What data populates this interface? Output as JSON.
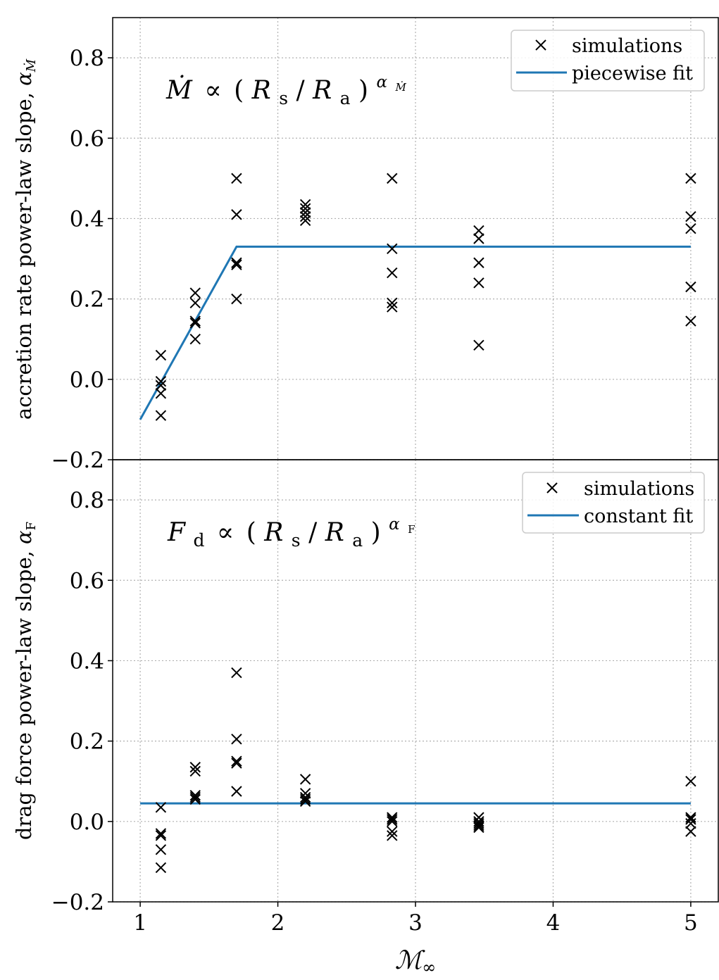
{
  "chart_data": [
    {
      "type": "scatter",
      "ylabel": "accretion rate power-law slope, α_Ṁ",
      "ylabel_main": "accretion rate power-law slope, ",
      "ylabel_sym": "α",
      "ylabel_sub": "Ṁ",
      "ylim": [
        -0.2,
        0.9
      ],
      "xlim": [
        0.8,
        5.2
      ],
      "yticks": [
        "−0.2",
        "0.0",
        "0.2",
        "0.4",
        "0.6",
        "0.8"
      ],
      "ytick_values": [
        -0.2,
        0.0,
        0.2,
        0.4,
        0.6,
        0.8
      ],
      "grid": true,
      "legend_position": "top-right",
      "annotation": "Ṁ ∝ (Rs/Ra)^αṀ",
      "annotation_parts": {
        "lhs": "Ṁ",
        "prop": "∝",
        "open": "(",
        "r1": "R",
        "s1": "s",
        "slash": "/",
        "r2": "R",
        "s2": "a",
        "close": ")",
        "exp": "α",
        "exp_sub": "Ṁ"
      },
      "series": [
        {
          "name": "simulations",
          "marker": "x",
          "color": "#000000",
          "points": [
            [
              1.15,
              0.06
            ],
            [
              1.15,
              -0.005
            ],
            [
              1.15,
              -0.015
            ],
            [
              1.15,
              -0.035
            ],
            [
              1.15,
              -0.09
            ],
            [
              1.4,
              0.215
            ],
            [
              1.4,
              0.19
            ],
            [
              1.4,
              0.145
            ],
            [
              1.4,
              0.14
            ],
            [
              1.4,
              0.1
            ],
            [
              1.7,
              0.5
            ],
            [
              1.7,
              0.41
            ],
            [
              1.7,
              0.29
            ],
            [
              1.7,
              0.285
            ],
            [
              1.7,
              0.2
            ],
            [
              2.2,
              0.435
            ],
            [
              2.2,
              0.425
            ],
            [
              2.2,
              0.415
            ],
            [
              2.2,
              0.405
            ],
            [
              2.2,
              0.395
            ],
            [
              2.83,
              0.5
            ],
            [
              2.83,
              0.325
            ],
            [
              2.83,
              0.265
            ],
            [
              2.83,
              0.19
            ],
            [
              2.83,
              0.18
            ],
            [
              3.46,
              0.37
            ],
            [
              3.46,
              0.35
            ],
            [
              3.46,
              0.29
            ],
            [
              3.46,
              0.24
            ],
            [
              3.46,
              0.085
            ],
            [
              5.0,
              0.5
            ],
            [
              5.0,
              0.405
            ],
            [
              5.0,
              0.375
            ],
            [
              5.0,
              0.23
            ],
            [
              5.0,
              0.145
            ]
          ]
        },
        {
          "name": "piecewise fit",
          "marker": "line",
          "color": "#1f77b4",
          "points": [
            [
              1.0,
              -0.1
            ],
            [
              1.7,
              0.33
            ],
            [
              5.0,
              0.33
            ]
          ]
        }
      ]
    },
    {
      "type": "scatter",
      "xlabel": "ℳ∞",
      "xlabel_main": "ℳ",
      "xlabel_sub": "∞",
      "ylabel": "drag force power-law slope, α_F",
      "ylabel_main": "drag force power-law slope, ",
      "ylabel_sym": "α",
      "ylabel_sub": "F",
      "ylim": [
        -0.2,
        0.9
      ],
      "xlim": [
        0.8,
        5.2
      ],
      "xticks": [
        "1",
        "2",
        "3",
        "4",
        "5"
      ],
      "xtick_values": [
        1,
        2,
        3,
        4,
        5
      ],
      "yticks": [
        "−0.2",
        "0.0",
        "0.2",
        "0.4",
        "0.6",
        "0.8"
      ],
      "ytick_values": [
        -0.2,
        0.0,
        0.2,
        0.4,
        0.6,
        0.8
      ],
      "grid": true,
      "legend_position": "top-right",
      "annotation": "Fd ∝ (Rs/Ra)^αF",
      "annotation_parts": {
        "lhs": "F",
        "lhs_sub": "d",
        "prop": "∝",
        "open": "(",
        "r1": "R",
        "s1": "s",
        "slash": "/",
        "r2": "R",
        "s2": "a",
        "close": ")",
        "exp": "α",
        "exp_sub": "F"
      },
      "series": [
        {
          "name": "simulations",
          "marker": "x",
          "color": "#000000",
          "points": [
            [
              1.15,
              0.035
            ],
            [
              1.15,
              -0.03
            ],
            [
              1.15,
              -0.035
            ],
            [
              1.15,
              -0.07
            ],
            [
              1.15,
              -0.115
            ],
            [
              1.4,
              0.135
            ],
            [
              1.4,
              0.125
            ],
            [
              1.4,
              0.065
            ],
            [
              1.4,
              0.06
            ],
            [
              1.4,
              0.055
            ],
            [
              1.7,
              0.37
            ],
            [
              1.7,
              0.205
            ],
            [
              1.7,
              0.15
            ],
            [
              1.7,
              0.145
            ],
            [
              1.7,
              0.075
            ],
            [
              2.2,
              0.105
            ],
            [
              2.2,
              0.07
            ],
            [
              2.2,
              0.06
            ],
            [
              2.2,
              0.055
            ],
            [
              2.2,
              0.05
            ],
            [
              2.83,
              0.01
            ],
            [
              2.83,
              0.005
            ],
            [
              2.83,
              0.0
            ],
            [
              2.83,
              -0.025
            ],
            [
              2.83,
              -0.035
            ],
            [
              3.46,
              0.01
            ],
            [
              3.46,
              0.0
            ],
            [
              3.46,
              -0.005
            ],
            [
              3.46,
              -0.01
            ],
            [
              3.46,
              -0.015
            ],
            [
              5.0,
              0.1
            ],
            [
              5.0,
              0.01
            ],
            [
              5.0,
              0.005
            ],
            [
              5.0,
              -0.005
            ],
            [
              5.0,
              -0.025
            ]
          ]
        },
        {
          "name": "constant fit",
          "marker": "line",
          "color": "#1f77b4",
          "points": [
            [
              1.0,
              0.045
            ],
            [
              5.0,
              0.045
            ]
          ]
        }
      ]
    }
  ]
}
